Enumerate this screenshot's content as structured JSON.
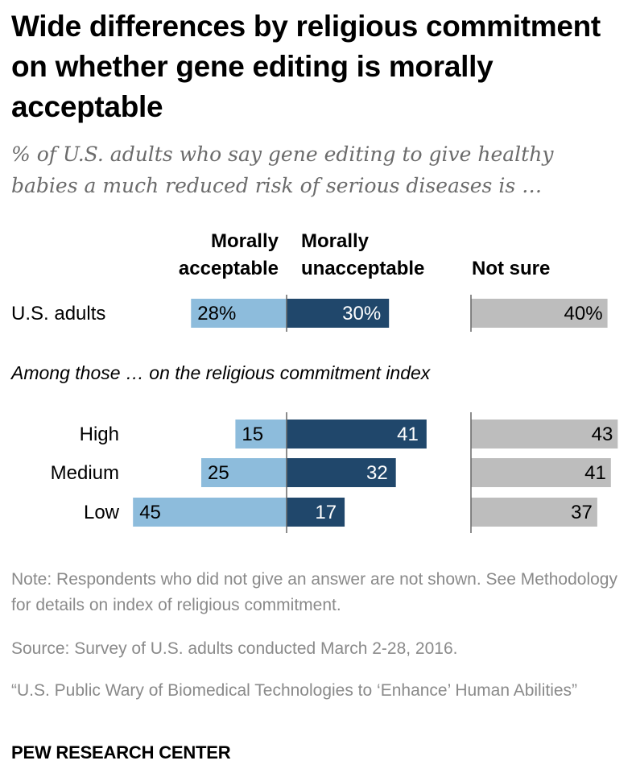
{
  "title": "Wide differences by religious commitment on whether gene editing is morally acceptable",
  "subtitle": "% of U.S. adults who say gene editing to give healthy babies a much reduced risk of serious diseases is …",
  "columns": {
    "acceptable": "Morally acceptable",
    "unacceptable": "Morally unacceptable",
    "not_sure": "Not sure"
  },
  "section_label": "Among those … on the religious commitment index",
  "note": "Note: Respondents who did not give an answer are not shown. See Methodology for details on index of religious commitment.",
  "source": "Source: Survey of U.S. adults conducted March 2-28, 2016.",
  "report": "“U.S. Public Wary of Biomedical Technologies to ‘Enhance’ Human Abilities”",
  "brand": "PEW RESEARCH CENTER",
  "colors": {
    "acceptable": "#8dbcdc",
    "unacceptable": "#20476b",
    "not_sure": "#bdbdbd",
    "axis": "#666666"
  },
  "chart_data": {
    "type": "bar",
    "orientation": "horizontal-diverging",
    "categories": [
      "U.S. adults",
      "High",
      "Medium",
      "Low"
    ],
    "series": [
      {
        "name": "Morally acceptable",
        "values": [
          28,
          15,
          25,
          45
        ],
        "labels": [
          "28%",
          "15",
          "25",
          "45"
        ]
      },
      {
        "name": "Morally unacceptable",
        "values": [
          30,
          41,
          32,
          17
        ],
        "labels": [
          "30%",
          "41",
          "32",
          "17"
        ]
      },
      {
        "name": "Not sure",
        "values": [
          40,
          43,
          41,
          37
        ],
        "labels": [
          "40%",
          "43",
          "41",
          "37"
        ]
      }
    ]
  }
}
